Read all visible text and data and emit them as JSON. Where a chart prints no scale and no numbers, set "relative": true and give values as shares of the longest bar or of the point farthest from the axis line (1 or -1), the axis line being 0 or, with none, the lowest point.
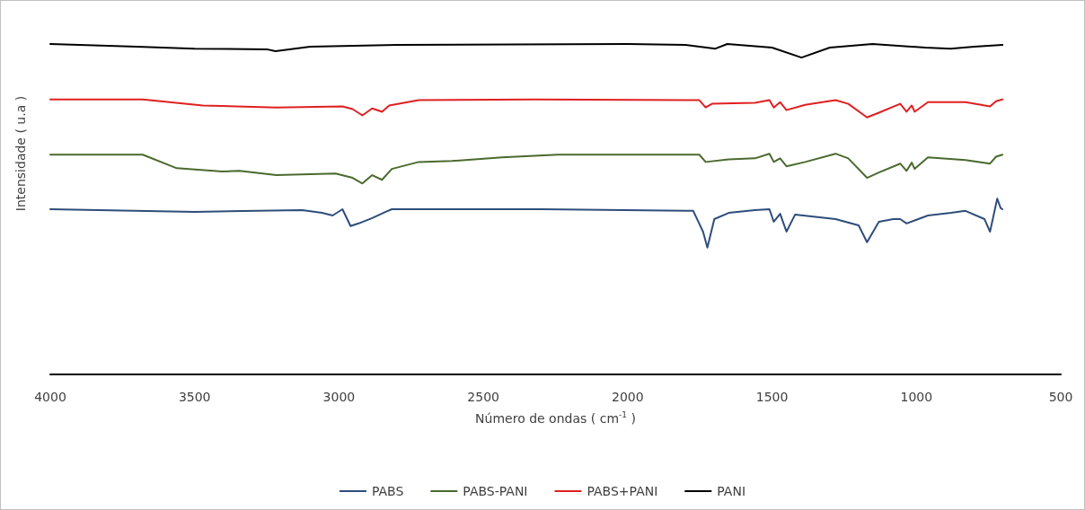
{
  "chart_data": {
    "type": "line",
    "relative": true,
    "xlabel": "Número de ondas ( cm$^{-1}$ )",
    "ylabel": "Intensidade ( u.a )",
    "xlim": [
      4000,
      500
    ],
    "xticks": [
      4000,
      3500,
      3000,
      2500,
      2000,
      1500,
      1000,
      500
    ],
    "grid": false,
    "legend": "bottom",
    "marker": "none",
    "line_style": "solid",
    "series": [
      {
        "name": "PABS",
        "color": "#2e4d7b",
        "x": [
          4000,
          3500,
          3128,
          3059,
          3022,
          2988,
          2960,
          2932,
          2885,
          2838,
          2817,
          2300,
          1773,
          1739,
          1724,
          1700,
          1650,
          1559,
          1509,
          1494,
          1472,
          1450,
          1420,
          1280,
          1200,
          1171,
          1130,
          1080,
          1056,
          1034,
          960,
          880,
          830,
          764,
          745,
          720,
          708,
          702
        ],
        "values": [
          0.5,
          0.492,
          0.497,
          0.489,
          0.481,
          0.5,
          0.449,
          0.457,
          0.473,
          0.492,
          0.5,
          0.5,
          0.495,
          0.432,
          0.384,
          0.47,
          0.489,
          0.497,
          0.5,
          0.462,
          0.486,
          0.432,
          0.484,
          0.47,
          0.451,
          0.4,
          0.462,
          0.47,
          0.47,
          0.457,
          0.481,
          0.489,
          0.495,
          0.47,
          0.432,
          0.532,
          0.503,
          0.5
        ]
      },
      {
        "name": "PABS-PANI",
        "color": "#4a6a2e",
        "x": [
          4000,
          3680,
          3562,
          3404,
          3345,
          3217,
          3012,
          2953,
          2919,
          2885,
          2851,
          2817,
          2724,
          2609,
          2435,
          2242,
          1752,
          1730,
          1650,
          1559,
          1509,
          1494,
          1472,
          1450,
          1385,
          1280,
          1236,
          1171,
          1130,
          1056,
          1034,
          1016,
          1006,
          960,
          830,
          745,
          724,
          702
        ],
        "values": [
          0.665,
          0.665,
          0.624,
          0.614,
          0.616,
          0.603,
          0.608,
          0.595,
          0.578,
          0.603,
          0.589,
          0.622,
          0.643,
          0.646,
          0.657,
          0.665,
          0.665,
          0.643,
          0.651,
          0.654,
          0.668,
          0.643,
          0.654,
          0.63,
          0.643,
          0.668,
          0.654,
          0.595,
          0.611,
          0.638,
          0.616,
          0.641,
          0.622,
          0.657,
          0.649,
          0.638,
          0.659,
          0.665
        ]
      },
      {
        "name": "PABS+PANI",
        "color": "#e02020",
        "x": [
          4000,
          3680,
          3472,
          3217,
          2988,
          2953,
          2919,
          2885,
          2851,
          2826,
          2724,
          2320,
          1752,
          1730,
          1708,
          1559,
          1509,
          1494,
          1472,
          1450,
          1385,
          1280,
          1236,
          1171,
          1130,
          1056,
          1034,
          1016,
          1006,
          960,
          830,
          745,
          724,
          702
        ],
        "values": [
          0.832,
          0.832,
          0.814,
          0.808,
          0.811,
          0.803,
          0.784,
          0.805,
          0.795,
          0.814,
          0.83,
          0.832,
          0.83,
          0.808,
          0.819,
          0.822,
          0.83,
          0.808,
          0.824,
          0.8,
          0.816,
          0.83,
          0.819,
          0.778,
          0.792,
          0.819,
          0.795,
          0.814,
          0.795,
          0.824,
          0.824,
          0.811,
          0.827,
          0.832
        ]
      },
      {
        "name": "PANI",
        "color": "#000000",
        "x": [
          4000,
          3700,
          3500,
          3250,
          3220,
          3100,
          2800,
          2000,
          1800,
          1696,
          1655,
          1500,
          1398,
          1300,
          1152,
          969,
          882,
          800,
          702
        ],
        "values": [
          1.0,
          0.992,
          0.986,
          0.984,
          0.978,
          0.992,
          0.997,
          1.0,
          0.997,
          0.986,
          1.0,
          0.989,
          0.959,
          0.989,
          1.0,
          0.989,
          0.986,
          0.992,
          0.997
        ]
      }
    ]
  }
}
